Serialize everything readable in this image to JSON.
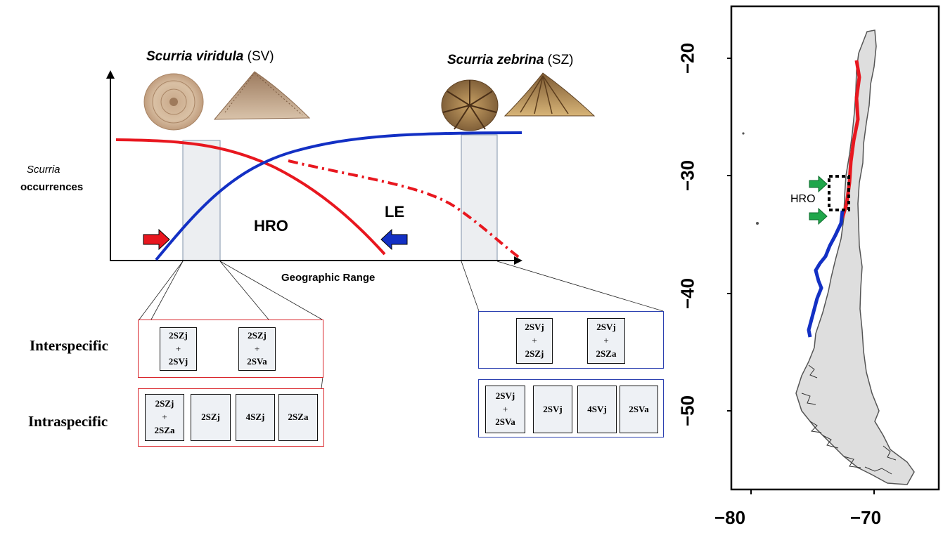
{
  "species": {
    "sv": {
      "name": "Scurria viridula",
      "abbr": "(SV)"
    },
    "sz": {
      "name": "Scurria zebrina",
      "abbr": "(SZ)"
    }
  },
  "diagram": {
    "ylabel_line1": "Scurria",
    "ylabel_line2": "occurrences",
    "xlabel": "Geographic Range",
    "hro_label": "HRO",
    "le_label": "LE"
  },
  "rows": {
    "interspecific": "Interspecific",
    "intraspecific": "Intraspecific"
  },
  "left_boxes": {
    "inter": [
      {
        "top": "2SZj",
        "plus": "+",
        "bottom": "2SVj"
      },
      {
        "top": "2SZj",
        "plus": "+",
        "bottom": "2SVa"
      }
    ],
    "intra": [
      {
        "top": "2SZj",
        "plus": "+",
        "bottom": "2SZa"
      },
      {
        "single": "2SZj"
      },
      {
        "single": "4SZj"
      },
      {
        "single": "2SZa"
      }
    ]
  },
  "right_boxes": {
    "inter": [
      {
        "top": "2SVj",
        "plus": "+",
        "bottom": "2SZj"
      },
      {
        "top": "2SVj",
        "plus": "+",
        "bottom": "2SZa"
      }
    ],
    "intra": [
      {
        "top": "2SVj",
        "plus": "+",
        "bottom": "2SVa"
      },
      {
        "single": "2SVj"
      },
      {
        "single": "4SVj"
      },
      {
        "single": "2SVa"
      }
    ]
  },
  "map": {
    "y_ticks": [
      "−20",
      "−30",
      "−40",
      "−50"
    ],
    "x_ticks": [
      "−80",
      "−70"
    ],
    "hro_label": "HRO"
  },
  "colors": {
    "sv_line": "#e8171f",
    "sz_line": "#1330c4",
    "arrow_green": "#1fa64a"
  }
}
